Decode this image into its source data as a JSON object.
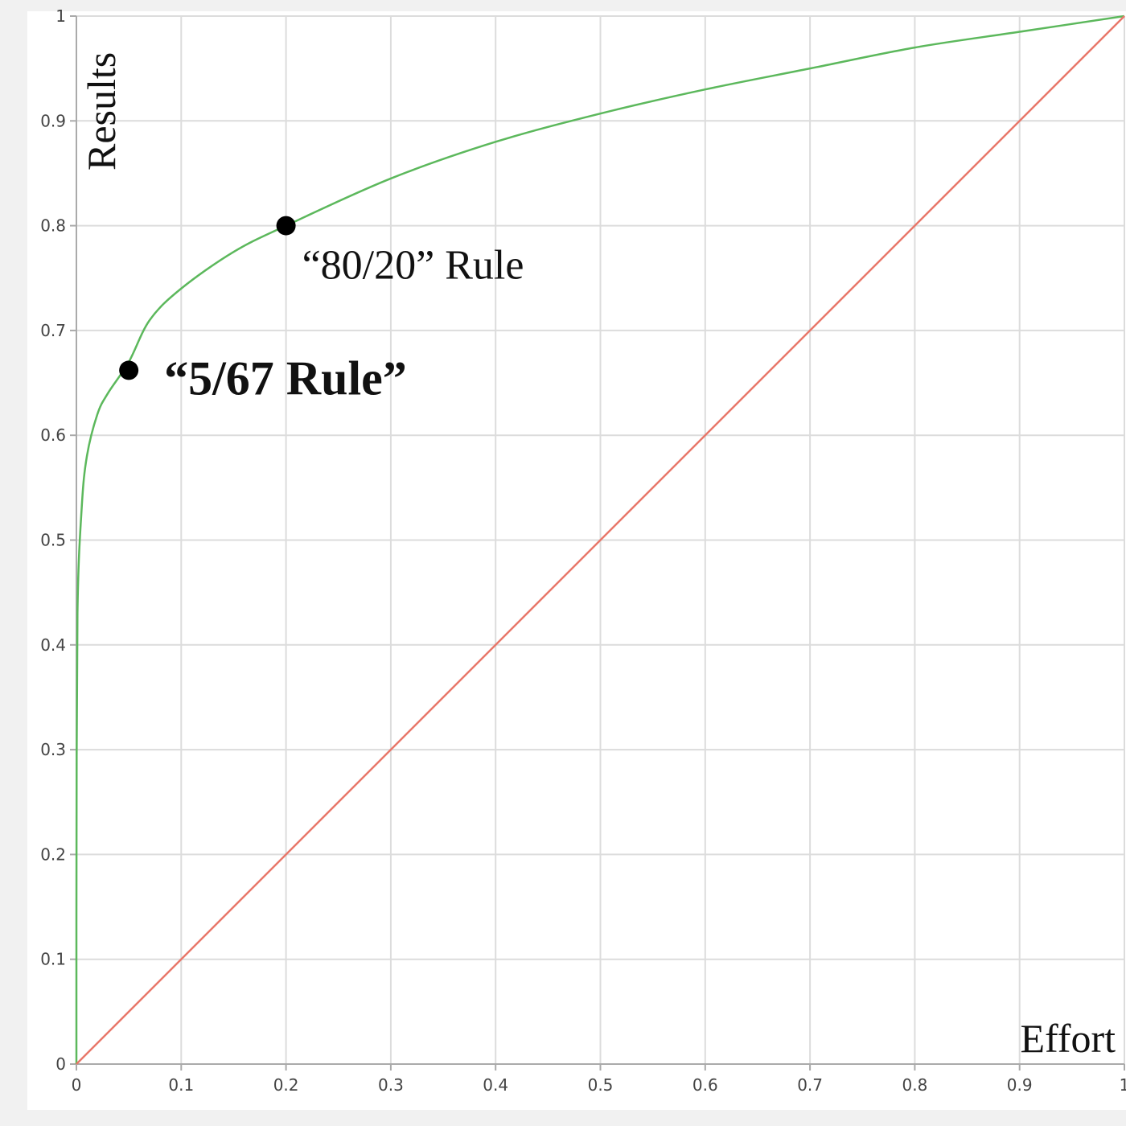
{
  "chart_data": {
    "type": "line",
    "title": "",
    "xlabel": "Effort",
    "ylabel": "Results",
    "xlim": [
      0,
      1
    ],
    "ylim": [
      0,
      1
    ],
    "grid": true,
    "x_ticks": [
      "0",
      "0.1",
      "0.2",
      "0.3",
      "0.4",
      "0.5",
      "0.6",
      "0.7",
      "0.8",
      "0.9",
      "1"
    ],
    "y_ticks": [
      "0",
      "0.1",
      "0.2",
      "0.3",
      "0.4",
      "0.5",
      "0.6",
      "0.7",
      "0.8",
      "0.9",
      "1"
    ],
    "series": [
      {
        "color": "#5cb85c",
        "x": [
          0,
          0.0001,
          0.001,
          0.005,
          0.01,
          0.02,
          0.03,
          0.05,
          0.07,
          0.1,
          0.15,
          0.2,
          0.3,
          0.4,
          0.5,
          0.6,
          0.7,
          0.8,
          0.9,
          1.0
        ],
        "y": [
          0,
          0.21,
          0.43,
          0.53,
          0.58,
          0.62,
          0.64,
          0.67,
          0.71,
          0.74,
          0.775,
          0.8,
          0.845,
          0.88,
          0.907,
          0.93,
          0.95,
          0.97,
          0.985,
          1.0
        ]
      },
      {
        "color": "#e8776a",
        "x": [
          0,
          1
        ],
        "y": [
          0,
          1
        ]
      }
    ],
    "annotations": [
      {
        "text": "“80/20” Rule",
        "x": 0.2,
        "y": 0.8,
        "bold": false
      },
      {
        "text": "“5/67 Rule”",
        "x": 0.05,
        "y": 0.662,
        "bold": true
      }
    ],
    "grid_color": "#dcdcdc",
    "axis_color": "#aaaaaa",
    "marker_color": "#000000"
  }
}
